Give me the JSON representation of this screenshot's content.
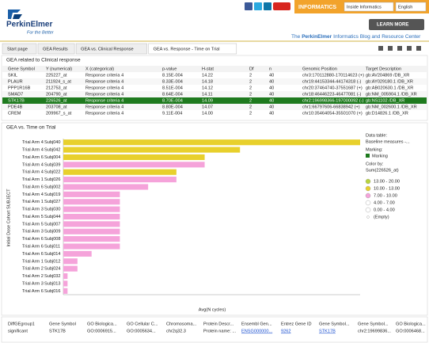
{
  "header": {
    "brand": "PerkinElmer",
    "tagline": "For the Better",
    "section": "INFORMATICS",
    "dropdowns": [
      "Inside Informatics",
      "English"
    ],
    "button": "LEARN MORE",
    "blog_title": [
      "The",
      "PerkinElmer",
      "Informatics Blog and Resource Center"
    ]
  },
  "tabs": [
    "Start page",
    "GEA Results",
    "GEA vs. Clinical Response",
    "GEA vs. Response - Time on Trial"
  ],
  "active_tab": 3,
  "table": {
    "title": "GEA related to Clinical response",
    "columns": [
      "Gene Symbol",
      "Y (numerical)",
      "X (categorical)",
      "p-value",
      "H-stat",
      "Df",
      "n",
      "Genomic Position",
      "Target Description"
    ],
    "rows": [
      [
        "SKIL",
        "225227_at",
        "Response criteria 4",
        "8.15E-004",
        "14.22",
        "2",
        "40",
        "chr3:170112880-170114623 (+)",
        "gb:AV204869 /DB_XR"
      ],
      [
        "PLAUR",
        "211924_s_at",
        "Response criteria 4",
        "8.33E-004",
        "14.18",
        "2",
        "40",
        "chr19:44153344-44174318 (-)",
        "gb:AY029180.1 /DB_XR"
      ],
      [
        "PPP1R16B",
        "212753_at",
        "Response criteria 4",
        "8.51E-004",
        "14.12",
        "2",
        "40",
        "chr20:37464740-37551687 (+)",
        "gb:AB020630.1 /DB_XR"
      ],
      [
        "SMAD7",
        "204790_at",
        "Response criteria 4",
        "8.64E-004",
        "14.11",
        "2",
        "40",
        "chr18:46446223-46477081 (-)",
        "gb:NM_005904.1 /DB_XR"
      ],
      [
        "STK17B",
        "226526_at",
        "Response criteria 4",
        "8.70E-004",
        "14.09",
        "2",
        "40",
        "chr2:196998366-197000092 (-)",
        "gb:NS1102 /DB_XR"
      ],
      [
        "PDE4B",
        "203708_at",
        "Response criteria 4",
        "8.80E-004",
        "14.07",
        "2",
        "40",
        "chr1:66797606-66838942 (+)",
        "gb:NM_002600.1 /DB_XR"
      ],
      [
        "CREM",
        "209967_s_at",
        "Response criteria 4",
        "9.11E-004",
        "14.00",
        "2",
        "40",
        "chr10:35464054-35501070 (+)",
        "gb:D14826.1 /DB_XR"
      ]
    ],
    "selected_row": 4
  },
  "chart_data": {
    "type": "bar",
    "orientation": "horizontal",
    "title": "GEA vs. Time on Trial",
    "x_label": "Avg(N cycles)",
    "y_label": "Initial Dose Cohort  SUBJECT",
    "groups": [
      "Trial Arm 4",
      "Trial Arm 4",
      "Trial Arm 6",
      "Trial Arm 4",
      "Trial Arm 4",
      "Trial Arm 1",
      "Trial Arm 6",
      "Trial Arm 4",
      "Trial Arm 1",
      "Trial Arm 3",
      "Trial Arm 5",
      "Trial Arm 5",
      "Trial Arm 3",
      "Trial Arm 6",
      "Trial Arm 6",
      "Trial Arm 6",
      "Trial Arm 1",
      "Trial Arm 2",
      "Trial Arm 2",
      "Trial Arm 3",
      "Trial Arm 6"
    ],
    "categories": [
      "Subj040",
      "Subj042",
      "Subj004",
      "Subj039",
      "Subj022",
      "Subj026",
      "Subj002",
      "Subj019",
      "Subj027",
      "Subj030",
      "Subj044",
      "Subj007",
      "Subj009",
      "Subj008",
      "Subj011",
      "Subj014",
      "Subj012",
      "Subj024",
      "Subj032",
      "Subj013",
      "Subj016"
    ],
    "values": [
      21,
      12.5,
      10,
      10,
      8,
      8,
      6,
      4,
      4,
      4,
      4,
      4,
      4,
      4,
      4,
      2,
      1,
      1,
      0.3,
      0.3,
      0.3
    ],
    "colors": [
      "#e8d02c",
      "#e8d02c",
      "#e8d02c",
      "#f5a3da",
      "#e8d02c",
      "#f5a3da",
      "#f5a3da",
      "#f5a3da",
      "#f5a3da",
      "#f5a3da",
      "#f5a3da",
      "#f5a3da",
      "#f5a3da",
      "#f5a3da",
      "#f5a3da",
      "#f5a3da",
      "#f5a3da",
      "#f5a3da",
      "#f5a3da",
      "#f5a3da",
      "#f5a3da"
    ],
    "xlim": [
      0,
      21
    ]
  },
  "legend": {
    "data_table_label": "Data table:",
    "data_table": "Baseline measures -...",
    "marking_label": "Marking:",
    "marking": "Marking",
    "marking_color": "#1e7a1e",
    "color_by_label": "Color by:",
    "color_by": "Sum(226526_at)",
    "bins": [
      {
        "label": "13.00 - 20.00",
        "color": "#b8d43c"
      },
      {
        "label": "10.00 - 13.00",
        "color": "#e8d02c"
      },
      {
        "label": "7.00 - 10.00",
        "color": "#f5a3da"
      },
      {
        "label": "4.00 - 7.00",
        "color": "#ffffff"
      },
      {
        "label": "0.00 - 4.00",
        "color": "#ffffff"
      },
      {
        "label": "(Empty)",
        "color": "#ffffff"
      }
    ]
  },
  "details": {
    "columns": [
      "DiffGEgroup1",
      "Gene Symbol",
      "GO Biologica...",
      "GO Cellular C...",
      "Chromosoma...",
      "Protein Descr...",
      "Ensembl Gen...",
      "Entrez Gene ID",
      "Gene Symbol...",
      "Gene Symbol...",
      "GO Biologica..."
    ],
    "rows": [
      [
        "significant",
        "STK17B",
        "GO:0006915...",
        "GO:0005634...",
        "chr2q32.3",
        "Protein name: ...",
        "ENSG000000...",
        "9262",
        "STK17B",
        "chr2:19699836...",
        "GO:0006468..."
      ]
    ]
  }
}
